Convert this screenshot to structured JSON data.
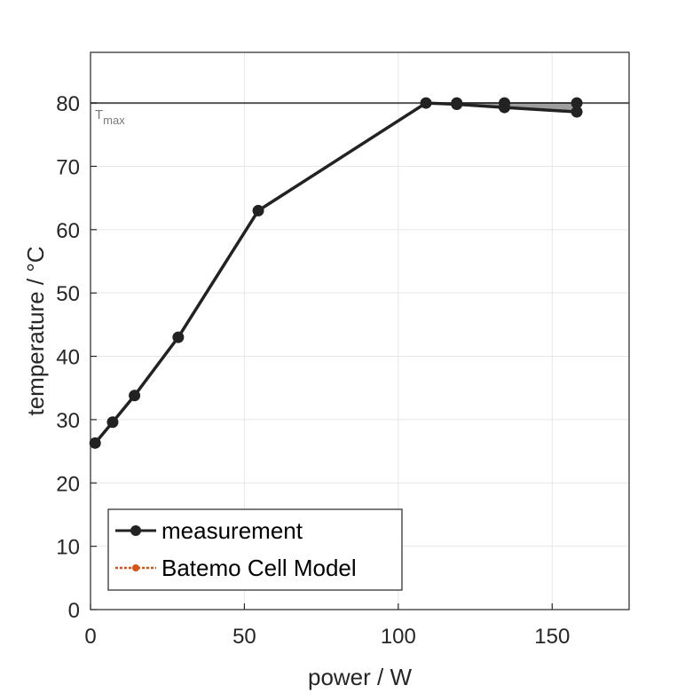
{
  "chart_data": {
    "type": "line",
    "title": "",
    "xlabel": "power / W",
    "ylabel": "temperature / °C",
    "xlim": [
      0,
      175
    ],
    "ylim": [
      0,
      88
    ],
    "xticks": [
      0,
      50,
      100,
      150
    ],
    "yticks": [
      0,
      10,
      20,
      30,
      40,
      50,
      60,
      70,
      80
    ],
    "grid": true,
    "legend_position": "bottom-left",
    "reference_line": {
      "y": 80,
      "label_main": "T",
      "label_sub": "max"
    },
    "series": [
      {
        "name": "measurement",
        "color": "#222222",
        "x": [
          1.5,
          7.2,
          14.3,
          28.5,
          54.5,
          109.0,
          119.0,
          134.5,
          158.0
        ],
        "y": [
          26.3,
          29.6,
          33.8,
          43.0,
          63.0,
          80.0,
          79.8,
          79.3,
          78.6
        ]
      },
      {
        "name": "Batemo Cell Model",
        "color": "#d95319",
        "x": [],
        "y": []
      }
    ],
    "shaded_band": {
      "color": "#9e9e9e",
      "x": [
        119.0,
        134.5,
        158.0
      ],
      "upper": [
        80.0,
        80.0,
        80.0
      ],
      "lower": [
        79.8,
        79.3,
        78.6
      ]
    }
  }
}
